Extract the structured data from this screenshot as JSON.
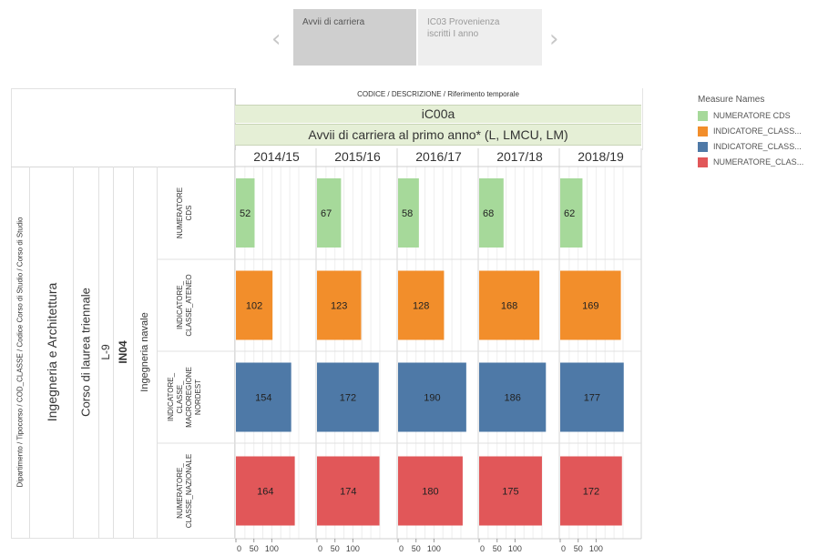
{
  "navigator": {
    "prev_arrow": "‹",
    "next_arrow": "›",
    "active": "Avvii di carriera",
    "inactive_line1": "IC03 Provenienza",
    "inactive_line2": "iscritti I anno"
  },
  "header": {
    "top": "CODICE / DESCRIZIONE / Riferimento temporale",
    "code": "iC00a",
    "description": "Avvii di carriera al primo anno* (L, LMCU, LM)"
  },
  "row_headers": {
    "field_path": "Dipartimento / Tipocorso / COD_CLASSE / Codice Corso di Studio / Corso di Studio",
    "department": "Ingegneria e Architettura",
    "course_type": "Corso di laurea triennale",
    "class_code": "L-9",
    "course_code": "IN04",
    "course_name": "Ingegneria navale"
  },
  "legend": {
    "title": "Measure Names",
    "items": [
      {
        "label": "NUMERATORE CDS",
        "color": "#a6d99a"
      },
      {
        "label": "INDICATORE_CLASS...",
        "color": "#f28e2b"
      },
      {
        "label": "INDICATORE_CLASS...",
        "color": "#4e79a7"
      },
      {
        "label": "NUMERATORE_CLAS...",
        "color": "#e15759"
      }
    ]
  },
  "chart_data": {
    "type": "bar",
    "orientation": "horizontal",
    "categories": [
      "2014/15",
      "2015/16",
      "2016/17",
      "2017/18",
      "2018/19"
    ],
    "series": [
      {
        "row_label": "NUMERATORE CDS",
        "color": "#a6d99a",
        "values": [
          52,
          67,
          58,
          68,
          62
        ]
      },
      {
        "row_label": "INDICATORE_ CLASSE_ATENEO",
        "color": "#f28e2b",
        "values": [
          102,
          123,
          128,
          168,
          169
        ]
      },
      {
        "row_label": "INDICATORE_ CLASSE_ MACROREGIONE NORDEST",
        "color": "#4e79a7",
        "values": [
          154,
          172,
          190,
          186,
          177
        ]
      },
      {
        "row_label": "NUMERATORE_ CLASSE_NAZIONALE",
        "color": "#e15759",
        "values": [
          164,
          174,
          180,
          175,
          172
        ]
      }
    ],
    "xlim": [
      0,
      200
    ],
    "x_ticks": [
      0,
      50,
      100
    ],
    "x_tick_labels": [
      "0",
      "50",
      "100"
    ],
    "grid": true
  }
}
